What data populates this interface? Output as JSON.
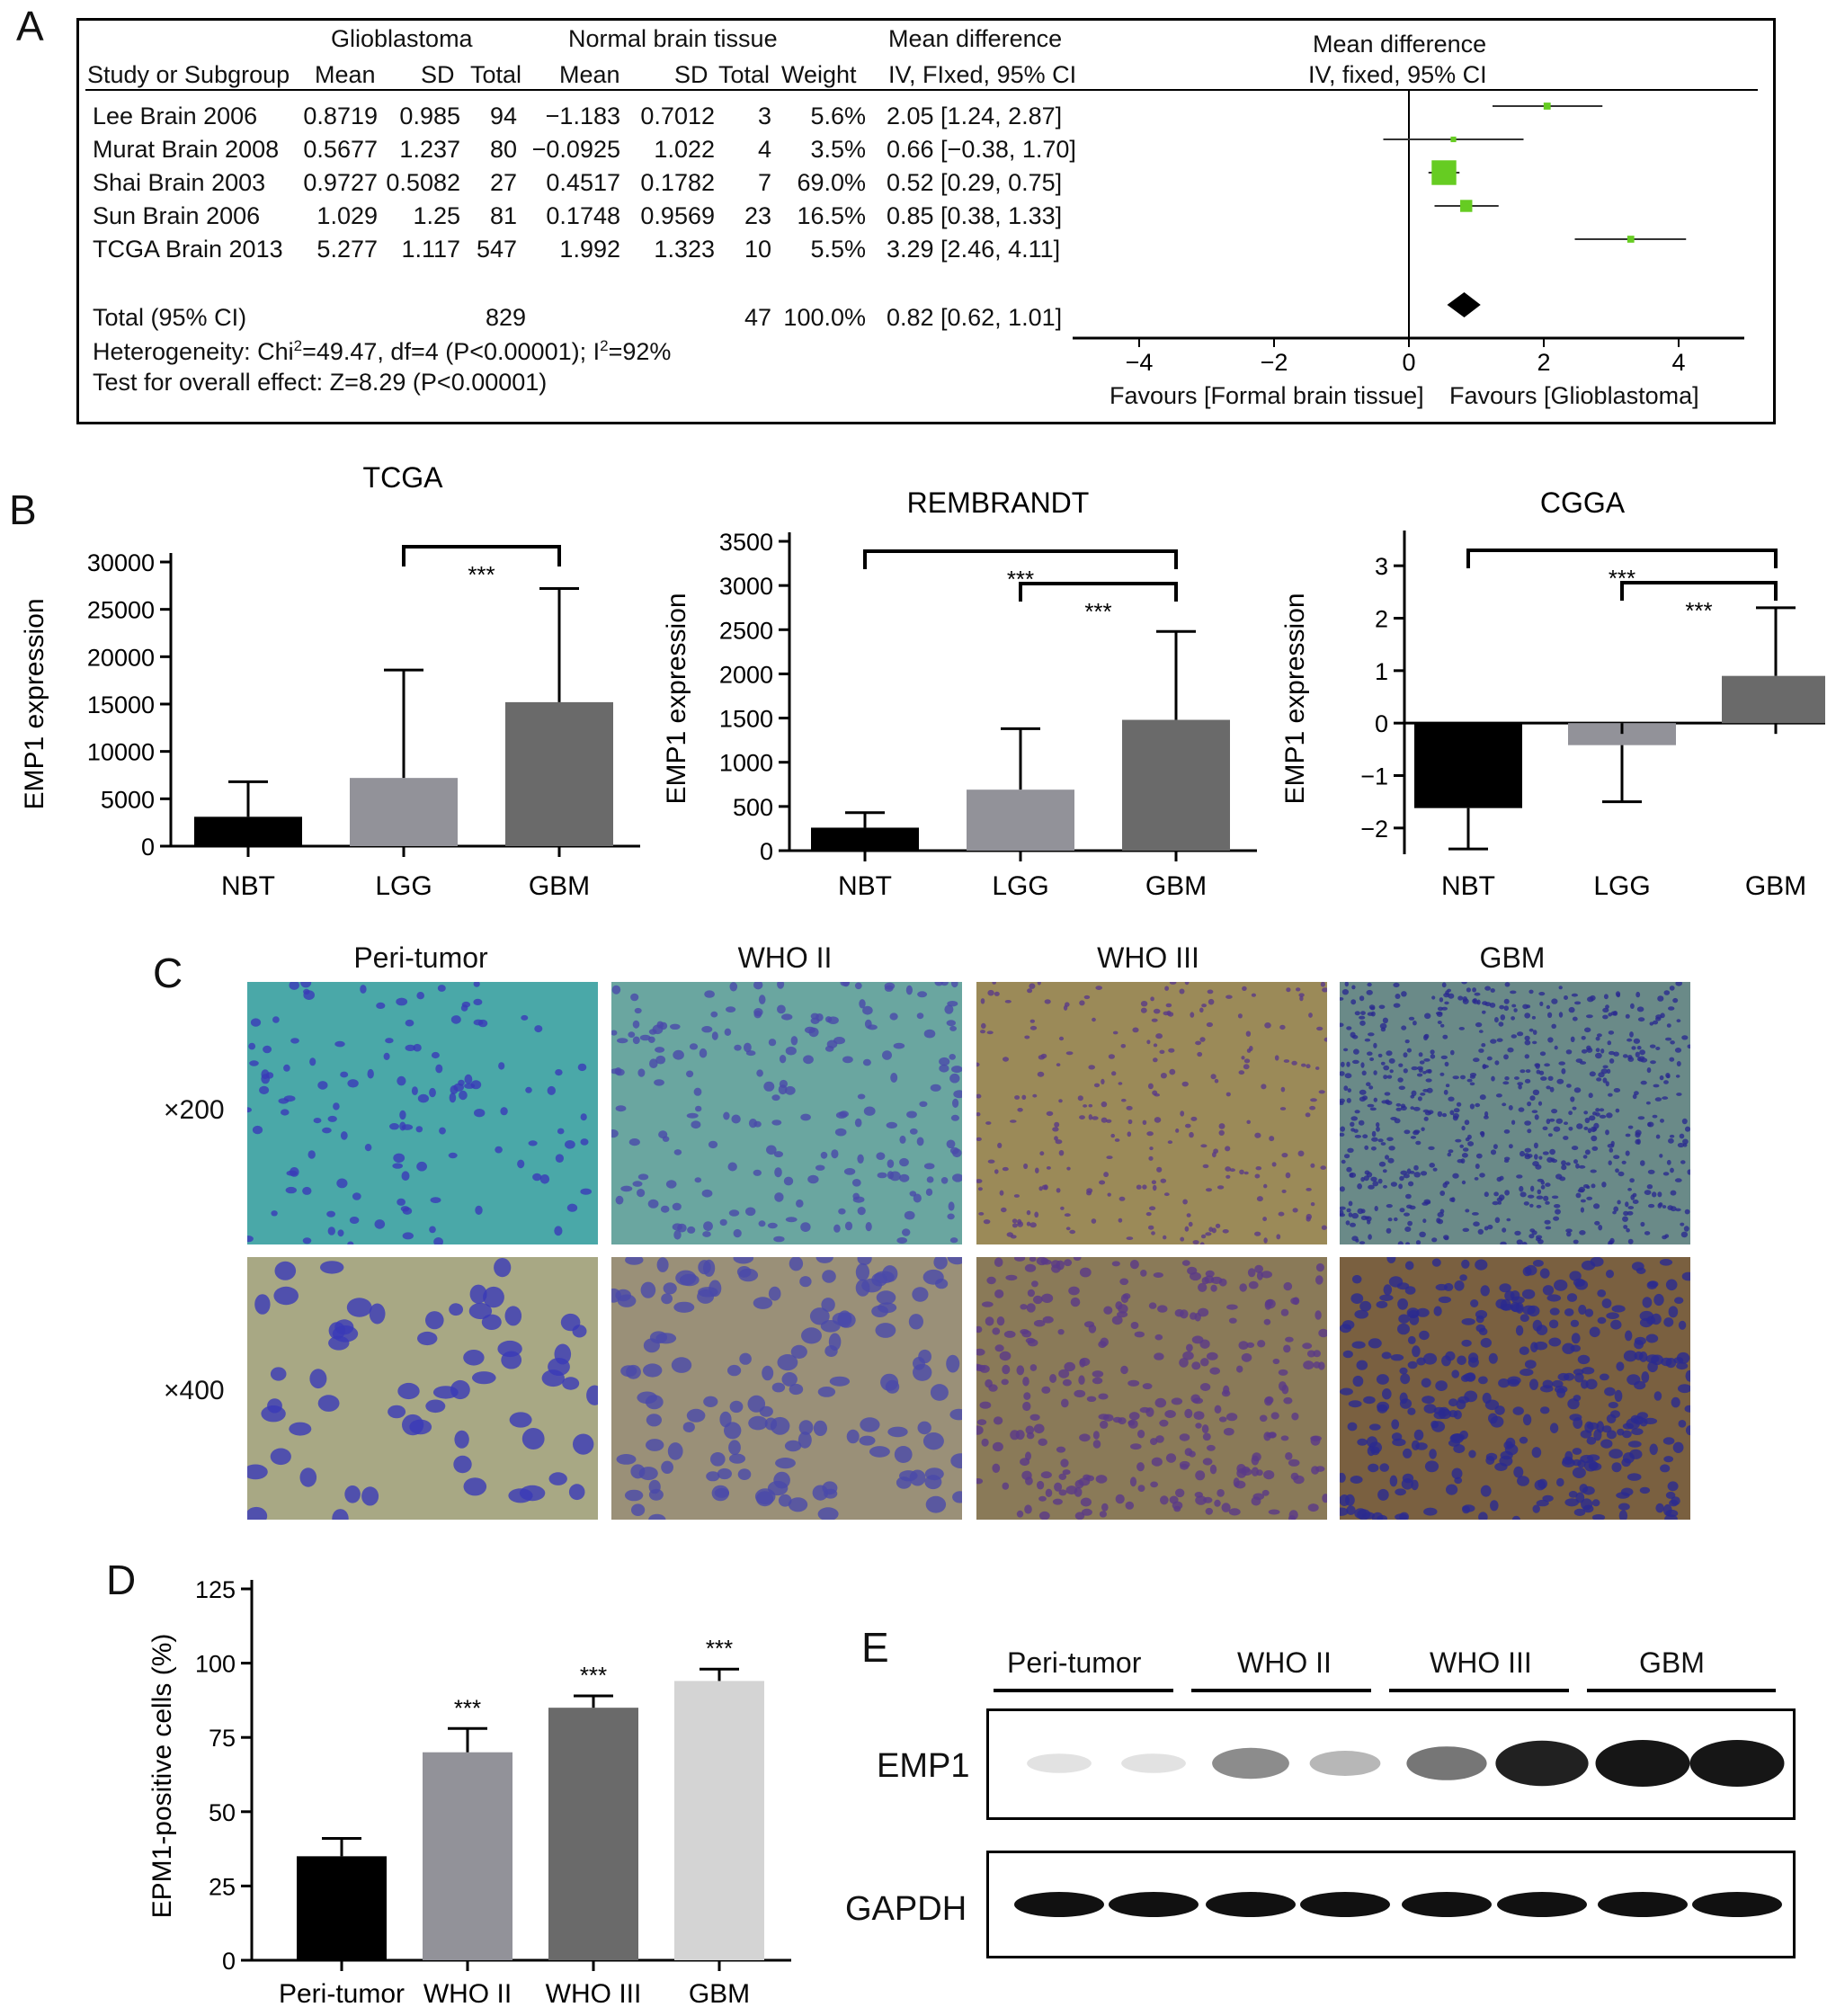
{
  "panels": {
    "a": "A",
    "b": "B",
    "c": "C",
    "d": "D",
    "e": "E"
  },
  "forest": {
    "header_groups": {
      "g1": "Glioblastoma",
      "g2": "Normal brain tissue",
      "md": "Mean difference",
      "md2": "Mean difference"
    },
    "columns": {
      "study": "Study or Subgroup",
      "mean1": "Mean",
      "sd1": "SD",
      "total1": "Total",
      "mean2": "Mean",
      "sd2": "SD",
      "total2": "Total",
      "weight": "Weight",
      "ci": "IV, FIxed, 95% CI",
      "ci2": "IV, fixed, 95% CI"
    },
    "rows": [
      {
        "study": "Lee Brain 2006",
        "mean1": "0.8719",
        "sd1": "0.985",
        "total1": "94",
        "mean2": "−1.183",
        "sd2": "0.7012",
        "total2": "3",
        "weight": "5.6%",
        "ci": "2.05 [1.24, 2.87]"
      },
      {
        "study": "Murat Brain 2008",
        "mean1": "0.5677",
        "sd1": "1.237",
        "total1": "80",
        "mean2": "−0.0925",
        "sd2": "1.022",
        "total2": "4",
        "weight": "3.5%",
        "ci": "0.66 [−0.38, 1.70]"
      },
      {
        "study": "Shai Brain 2003",
        "mean1": "0.9727",
        "sd1": "0.5082",
        "total1": "27",
        "mean2": "0.4517",
        "sd2": "0.1782",
        "total2": "7",
        "weight": "69.0%",
        "ci": "0.52 [0.29, 0.75]"
      },
      {
        "study": "Sun Brain 2006",
        "mean1": "1.029",
        "sd1": "1.25",
        "total1": "81",
        "mean2": "0.1748",
        "sd2": "0.9569",
        "total2": "23",
        "weight": "16.5%",
        "ci": "0.85 [0.38, 1.33]"
      },
      {
        "study": "TCGA Brain 2013",
        "mean1": "5.277",
        "sd1": "1.117",
        "total1": "547",
        "mean2": "1.992",
        "sd2": "1.323",
        "total2": "10",
        "weight": "5.5%",
        "ci": "3.29 [2.46, 4.11]"
      }
    ],
    "total": {
      "study": "Total (95% CI)",
      "total1": "829",
      "total2": "47",
      "weight": "100.0%",
      "ci": "0.82 [0.62, 1.01]"
    },
    "heterogeneity_a": "Heterogeneity: Chi",
    "heterogeneity_sup": "2",
    "heterogeneity_b": "=49.47, df=4 (P<0.00001); I",
    "heterogeneity_sup2": "2",
    "heterogeneity_c": "=92%",
    "overall": "Test for overall effect: Z=8.29 (P<0.00001)",
    "axis_ticks": [
      "−4",
      "−2",
      "0",
      "2",
      "4"
    ],
    "favours_left": "Favours [Formal brain tissue]",
    "favours_right": "Favours [Glioblastoma]",
    "colors": {
      "square": "#66cc22",
      "diamond": "#000000"
    }
  },
  "chart_data": [
    {
      "type": "forest",
      "ci": [
        [
          1.24,
          2.87
        ],
        [
          -0.38,
          1.7
        ],
        [
          0.29,
          0.75
        ],
        [
          0.38,
          1.33
        ],
        [
          2.46,
          4.11
        ]
      ],
      "estimates": [
        2.05,
        0.66,
        0.52,
        0.85,
        3.29
      ],
      "weights": [
        5.6,
        3.5,
        69.0,
        16.5,
        5.5
      ],
      "pooled": {
        "est": 0.82,
        "lo": 0.62,
        "hi": 1.01
      },
      "xlim": [
        -5,
        5
      ]
    },
    {
      "type": "bar",
      "title": "TCGA",
      "ylabel": "EMP1 expression",
      "categories": [
        "NBT",
        "LGG",
        "GBM"
      ],
      "values": [
        3100,
        7200,
        15200
      ],
      "errors": [
        3700,
        11400,
        12000
      ],
      "ylim": [
        0,
        30000
      ],
      "yticks": [
        0,
        5000,
        10000,
        15000,
        20000,
        25000,
        30000
      ],
      "colors": [
        "#000000",
        "#929299",
        "#6a6a6a"
      ],
      "sig": [
        {
          "from": 1,
          "to": 2,
          "label": "***"
        }
      ]
    },
    {
      "type": "bar",
      "title": "REMBRANDT",
      "ylabel": "EMP1 expression",
      "categories": [
        "NBT",
        "LGG",
        "GBM"
      ],
      "values": [
        260,
        690,
        1480
      ],
      "errors": [
        170,
        690,
        1000
      ],
      "ylim": [
        0,
        3500
      ],
      "yticks": [
        0,
        500,
        1000,
        1500,
        2000,
        2500,
        3000,
        3500
      ],
      "colors": [
        "#000000",
        "#929299",
        "#6a6a6a"
      ],
      "sig": [
        {
          "from": 0,
          "to": 2,
          "label": "***"
        },
        {
          "from": 1,
          "to": 2,
          "label": "***"
        }
      ]
    },
    {
      "type": "bar",
      "title": "CGGA",
      "ylabel": "EMP1 expression",
      "categories": [
        "NBT",
        "LGG",
        "GBM"
      ],
      "values": [
        -1.62,
        -0.42,
        0.9
      ],
      "errors": [
        0.78,
        1.08,
        1.3
      ],
      "ylim": [
        -2.5,
        3.5
      ],
      "yticks": [
        -2,
        -1,
        0,
        1,
        2,
        3
      ],
      "colors": [
        "#000000",
        "#929299",
        "#6a6a6a"
      ],
      "sig": [
        {
          "from": 0,
          "to": 2,
          "label": "***"
        },
        {
          "from": 1,
          "to": 2,
          "label": "***"
        }
      ]
    },
    {
      "type": "bar",
      "title": "",
      "ylabel": "EPM1-positive cells (%)",
      "categories": [
        "Peri-tumor",
        "WHO II",
        "WHO III",
        "GBM"
      ],
      "values": [
        35,
        70,
        85,
        94
      ],
      "errors": [
        6,
        8,
        4,
        4
      ],
      "ylim": [
        0,
        125
      ],
      "yticks": [
        0,
        25,
        50,
        75,
        100,
        125
      ],
      "colors": [
        "#000000",
        "#929299",
        "#6a6a6a",
        "#d4d4d4"
      ],
      "stars": [
        "",
        "***",
        "***",
        "***"
      ]
    }
  ],
  "ihc": {
    "columns": [
      "Peri-tumor",
      "WHO II",
      "WHO III",
      "GBM"
    ],
    "rows": [
      "×200",
      "×400"
    ]
  },
  "blot": {
    "groups": [
      "Peri-tumor",
      "WHO II",
      "WHO III",
      "GBM"
    ],
    "bands": [
      "EMP1",
      "GAPDH"
    ],
    "emp1_intensity": [
      0.05,
      0.05,
      0.45,
      0.25,
      0.55,
      0.95,
      1.0,
      1.0
    ]
  }
}
